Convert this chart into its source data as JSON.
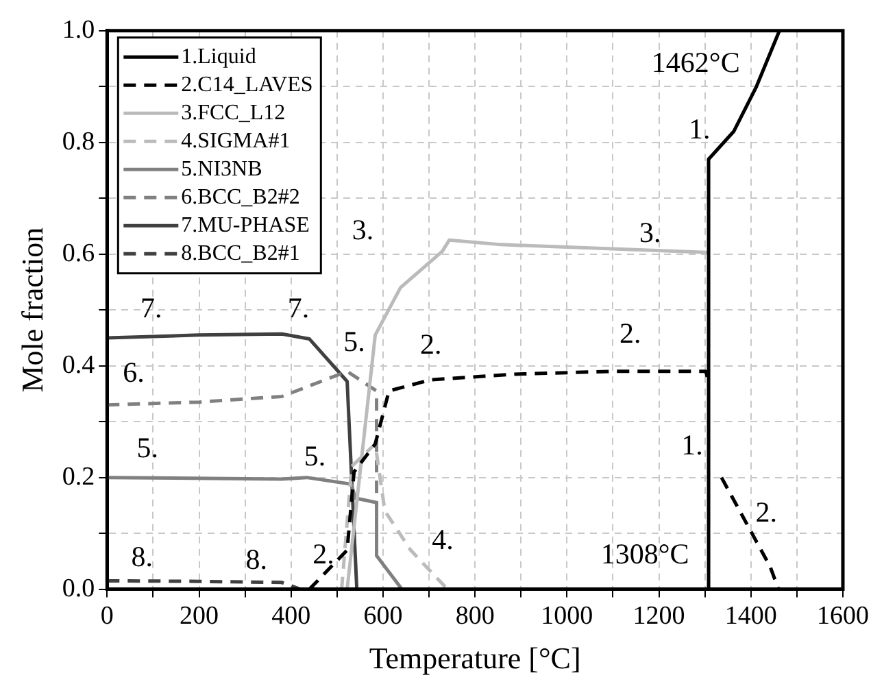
{
  "chart_data": {
    "type": "line",
    "xlabel": "Temperature [°C]",
    "ylabel": "Mole fraction",
    "xlim": [
      0,
      1600
    ],
    "ylim": [
      0,
      1
    ],
    "xticks": [
      0,
      {
        "value": 100,
        "label": null
      },
      200,
      {
        "value": 300,
        "label": null
      },
      400,
      {
        "value": 500,
        "label": null
      },
      600,
      {
        "value": 700,
        "label": null
      },
      800,
      {
        "value": 900,
        "label": null
      },
      1000,
      {
        "value": 1100,
        "label": null
      },
      1200,
      {
        "value": 1300,
        "label": null
      },
      1400,
      {
        "value": 1500,
        "label": null
      },
      1600
    ],
    "yticks": [
      {
        "value": 0,
        "label": "0.0"
      },
      {
        "value": 0.1,
        "label": null
      },
      {
        "value": 0.2,
        "label": "0.2"
      },
      {
        "value": 0.3,
        "label": null
      },
      {
        "value": 0.4,
        "label": "0.4"
      },
      {
        "value": 0.5,
        "label": null
      },
      {
        "value": 0.6,
        "label": "0.6"
      },
      {
        "value": 0.7,
        "label": null
      },
      {
        "value": 0.8,
        "label": "0.8"
      },
      {
        "value": 0.9,
        "label": null
      },
      {
        "value": 1,
        "label": "1.0"
      }
    ],
    "grid": true,
    "legend": "top left",
    "marker": "none",
    "series": [
      {
        "name": "1.Liquid",
        "color": "#000000",
        "line_style": "solid",
        "x": [
          1308,
          1308,
          1363,
          1412,
          1457,
          1462
        ],
        "values": [
          0,
          0.77,
          0.82,
          0.9,
          0.99,
          1
        ]
      },
      {
        "name": "2.C14_LAVES",
        "color": "#000000",
        "line_style": "dashed",
        "x": [
          440,
          522,
          537,
          583,
          613,
          704,
          886,
          1100,
          1302,
          1308,
          null,
          1336,
          1442,
          1460
        ],
        "values": [
          0,
          0.07,
          0.21,
          0.26,
          0.355,
          0.375,
          0.385,
          0.39,
          0.39,
          0.37,
          null,
          0.2,
          0.04,
          0
        ]
      },
      {
        "name": "3.FCC_L12",
        "color": "#bbbbbb",
        "line_style": "solid",
        "x": [
          522,
          583,
          638,
          729,
          744,
          856,
          1305
        ],
        "values": [
          0,
          0.455,
          0.54,
          0.605,
          0.625,
          0.617,
          0.603
        ]
      },
      {
        "name": "4.SIGMA#1",
        "color": "#bbbbbb",
        "line_style": "dashed",
        "x": [
          510,
          532,
          583,
          604,
          660,
          740
        ],
        "values": [
          0,
          0.22,
          0.26,
          0.14,
          0.07,
          0
        ]
      },
      {
        "name": "5.NI3NB",
        "color": "#808080",
        "line_style": "solid",
        "x": [
          0,
          380,
          434,
          531,
          540,
          586,
          586,
          641
        ],
        "values": [
          0.2,
          0.197,
          0.2,
          0.188,
          0.163,
          0.155,
          0.06,
          0
        ]
      },
      {
        "name": "6.BCC_B2#2",
        "color": "#808080",
        "line_style": "dashed",
        "x": [
          0,
          200,
          380,
          522,
          586,
          586
        ],
        "values": [
          0.33,
          0.335,
          0.345,
          0.39,
          0.355,
          0.15
        ]
      },
      {
        "name": "7.MU-PHASE",
        "color": "#404040",
        "line_style": "solid",
        "x": [
          0,
          200,
          380,
          440,
          522,
          543
        ],
        "values": [
          0.45,
          0.455,
          0.457,
          0.448,
          0.372,
          0
        ]
      },
      {
        "name": "8.BCC_B2#1",
        "color": "#404040",
        "line_style": "dashed",
        "x": [
          0,
          200,
          380,
          420
        ],
        "values": [
          0.015,
          0.014,
          0.012,
          0
        ]
      }
    ],
    "annotations": [
      "1462°C",
      "1.",
      "3.",
      "3.",
      "7.",
      "7.",
      "5.",
      "2.",
      "2.",
      "6.",
      "5.",
      "5.",
      "1.",
      "2.",
      "4.",
      "8.",
      "8.",
      "2.",
      "1308°C"
    ]
  }
}
